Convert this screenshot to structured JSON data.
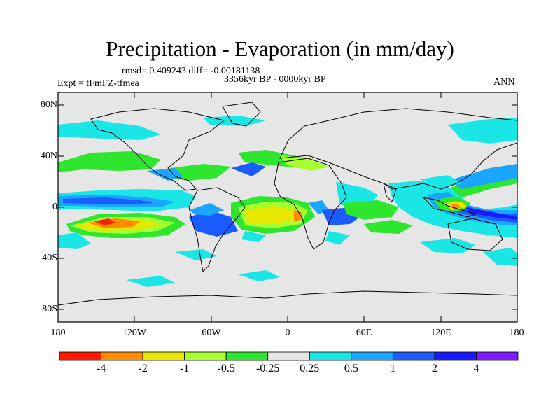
{
  "title": "Precipitation - Evaporation (in mm/day)",
  "stats_line": "rmsd= 0.409243 diff= -0.00181138",
  "period": "3356kyr BP - 0000kyr BP",
  "experiment": "Expt = tFmFZ-tfmea",
  "season": "ANN",
  "lat_labels": [
    "80N",
    "40N",
    "0",
    "40S",
    "80S"
  ],
  "lon_labels": [
    "180",
    "120W",
    "60W",
    "0",
    "60E",
    "120E",
    "180"
  ],
  "colorbar": {
    "colors": [
      "#ff1a00",
      "#ff8c00",
      "#e6e600",
      "#a6ff2e",
      "#2ee62e",
      "#e6e6e6",
      "#1ae6e6",
      "#1aa6ff",
      "#1a5cff",
      "#1a1aff",
      "#7f1aff"
    ],
    "labels": [
      "-4",
      "-2",
      "-1",
      "-0.5",
      "-0.25",
      "0.25",
      "0.5",
      "1",
      "2",
      "4"
    ]
  },
  "colors": {
    "ocean_zero": "#e6e6e6",
    "coast": "#000000"
  }
}
